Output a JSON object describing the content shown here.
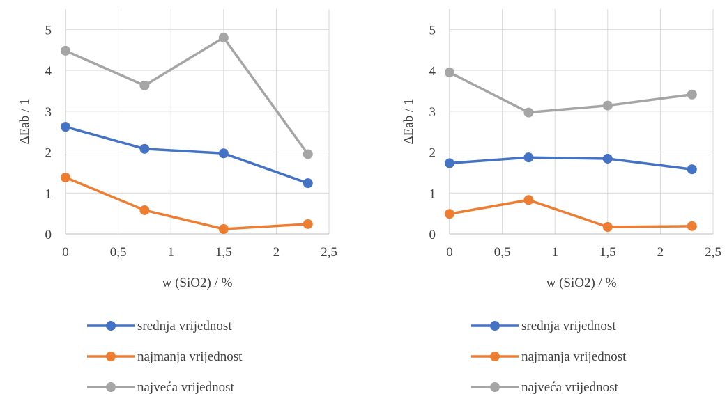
{
  "chart_data": [
    {
      "type": "line",
      "xlabel": "w (SiO2) / %",
      "ylabel": "ΔEab / 1",
      "xlim": [
        0,
        2.5
      ],
      "ylim": [
        0,
        5.5
      ],
      "xticks": [
        0,
        0.5,
        1,
        1.5,
        2,
        2.5
      ],
      "xtick_labels": [
        "0",
        "0,5",
        "1",
        "1,5",
        "2",
        "2,5"
      ],
      "yticks": [
        0,
        1,
        2,
        3,
        4,
        5
      ],
      "ytick_labels": [
        "0",
        "1",
        "2",
        "3",
        "4",
        "5"
      ],
      "grid": true,
      "legend_position": "bottom",
      "x": [
        0,
        0.75,
        1.5,
        2.3
      ],
      "series": [
        {
          "name": "srednja vrijednost",
          "color": "#4472C4",
          "values": [
            2.62,
            2.08,
            1.97,
            1.24
          ]
        },
        {
          "name": "najmanja vrijednost",
          "color": "#ED7D31",
          "values": [
            1.38,
            0.58,
            0.12,
            0.24
          ]
        },
        {
          "name": "najveća vrijednost",
          "color": "#A5A5A5",
          "values": [
            4.48,
            3.63,
            4.8,
            1.95
          ]
        }
      ]
    },
    {
      "type": "line",
      "xlabel": "w (SiO2) / %",
      "ylabel": "ΔEab / 1",
      "xlim": [
        0,
        2.5
      ],
      "ylim": [
        0,
        5.5
      ],
      "xticks": [
        0,
        0.5,
        1,
        1.5,
        2,
        2.5
      ],
      "xtick_labels": [
        "0",
        "0,5",
        "1",
        "1,5",
        "2",
        "2,5"
      ],
      "yticks": [
        0,
        1,
        2,
        3,
        4,
        5
      ],
      "ytick_labels": [
        "0",
        "1",
        "2",
        "3",
        "4",
        "5"
      ],
      "grid": true,
      "legend_position": "bottom",
      "x": [
        0,
        0.75,
        1.5,
        2.3
      ],
      "series": [
        {
          "name": "srednja vrijednost",
          "color": "#4472C4",
          "values": [
            1.73,
            1.87,
            1.84,
            1.58
          ]
        },
        {
          "name": "najmanja vrijednost",
          "color": "#ED7D31",
          "values": [
            0.49,
            0.83,
            0.17,
            0.19
          ]
        },
        {
          "name": "najveća vrijednost",
          "color": "#A5A5A5",
          "values": [
            3.95,
            2.97,
            3.14,
            3.41
          ]
        }
      ]
    }
  ]
}
